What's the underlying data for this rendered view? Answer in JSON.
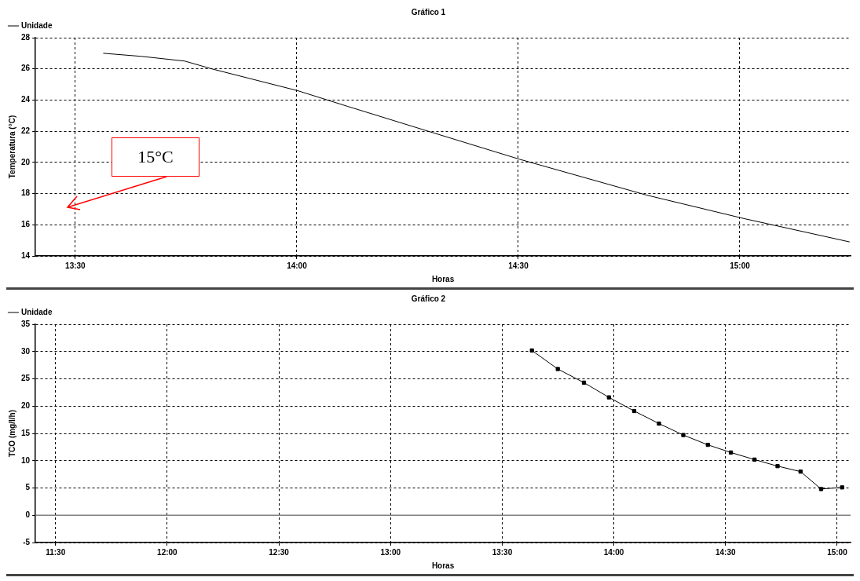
{
  "chart_data": [
    {
      "type": "line",
      "title": "Gráfico 1",
      "xlabel": "Horas",
      "ylabel": "Temperatura (°C)",
      "legend": "top left",
      "grid": true,
      "marker": "none",
      "line_style": "solid",
      "xlim": [
        13.41,
        15.25
      ],
      "xticks": [
        {
          "value": 13.5,
          "label": "13:30"
        },
        {
          "value": 14,
          "label": "14:00"
        },
        {
          "value": 14.5,
          "label": "14:30"
        },
        {
          "value": 15,
          "label": "15:00"
        }
      ],
      "ylim": [
        14,
        28
      ],
      "yticks": [
        14,
        16,
        18,
        20,
        22,
        24,
        26,
        28
      ],
      "x": [
        13.563,
        13.65,
        13.747,
        13.808,
        14.002,
        14.114,
        14.308,
        14.503,
        14.79,
        15.009,
        15.248
      ],
      "series": [
        {
          "name": "Unidade",
          "color": "#000000",
          "values": [
            27.0,
            26.8,
            26.5,
            26.0,
            24.6,
            23.6,
            21.9,
            20.2,
            17.9,
            16.4,
            14.9
          ]
        }
      ],
      "annotations": [
        "15°C"
      ]
    },
    {
      "type": "line",
      "title": "Gráfico 2",
      "xlabel": "Horas",
      "ylabel": "TCO (mg/l/h)",
      "legend": "top left",
      "grid": true,
      "marker": "square",
      "line_style": "solid",
      "xlim": [
        11.41,
        15.06
      ],
      "xticks": [
        {
          "value": 11.5,
          "label": "11:30"
        },
        {
          "value": 12,
          "label": "12:00"
        },
        {
          "value": 12.5,
          "label": "12:30"
        },
        {
          "value": 13,
          "label": "13:00"
        },
        {
          "value": 13.5,
          "label": "13:30"
        },
        {
          "value": 14,
          "label": "14:00"
        },
        {
          "value": 14.5,
          "label": "14:30"
        },
        {
          "value": 15,
          "label": "15:00"
        }
      ],
      "ylim": [
        -5,
        35
      ],
      "yticks": [
        -5,
        0,
        5,
        10,
        15,
        20,
        25,
        30,
        35
      ],
      "x": [
        13.633,
        13.749,
        13.866,
        13.978,
        14.091,
        14.202,
        14.311,
        14.421,
        14.524,
        14.63,
        14.733,
        14.836,
        14.928,
        15.022
      ],
      "series": [
        {
          "name": "Unidade",
          "color": "#000000",
          "values": [
            30.2,
            26.8,
            24.3,
            21.6,
            19.1,
            16.8,
            14.7,
            12.9,
            11.5,
            10.2,
            9.0,
            8.0,
            4.8,
            5.1
          ]
        }
      ],
      "ref_lines": [
        {
          "axis": "y",
          "value": 0,
          "color": "#808080"
        }
      ]
    }
  ]
}
